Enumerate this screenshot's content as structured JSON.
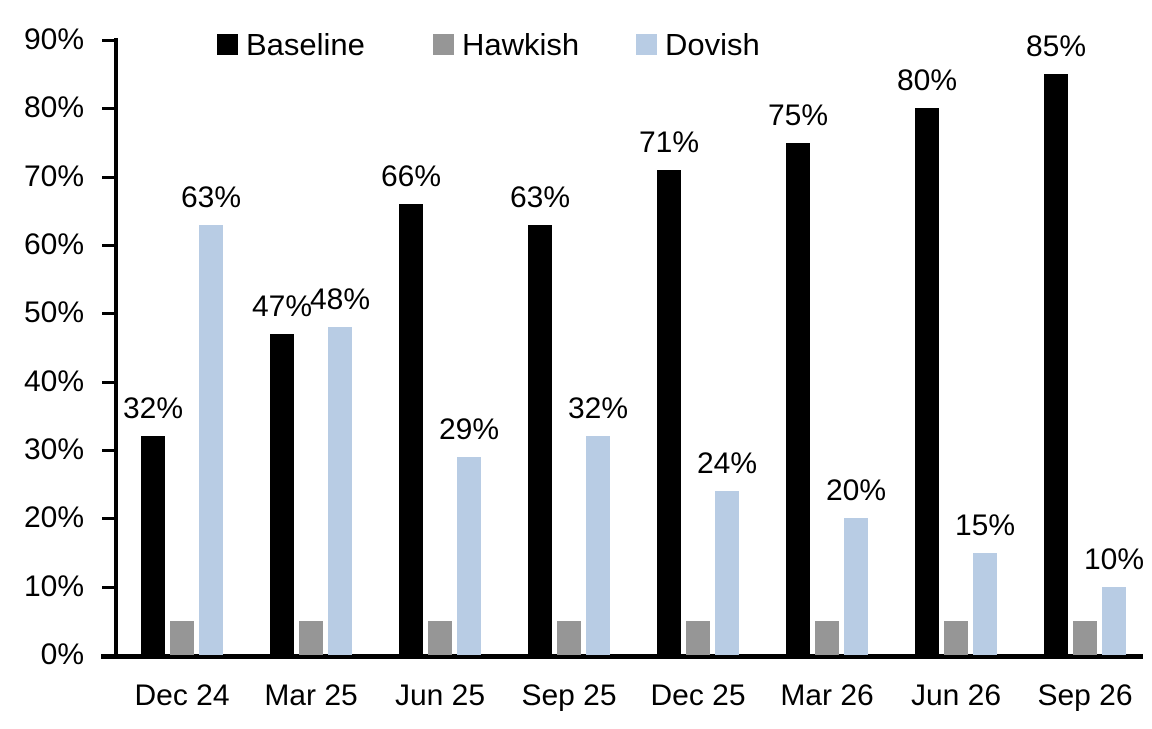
{
  "chart_data": {
    "type": "bar",
    "title": "",
    "xlabel": "",
    "ylabel": "",
    "categories": [
      "Dec 24",
      "Mar 25",
      "Jun 25",
      "Sep 25",
      "Dec 25",
      "Mar 26",
      "Jun 26",
      "Sep 26"
    ],
    "series": [
      {
        "name": "Baseline",
        "color": "#000000",
        "values": [
          32,
          47,
          66,
          63,
          71,
          75,
          80,
          85
        ],
        "data_labels": [
          "32%",
          "47%",
          "66%",
          "63%",
          "71%",
          "75%",
          "80%",
          "85%"
        ]
      },
      {
        "name": "Hawkish",
        "color": "#969696",
        "values": [
          5,
          5,
          5,
          5,
          5,
          5,
          5,
          5
        ],
        "data_labels": null
      },
      {
        "name": "Dovish",
        "color": "#b8cce4",
        "values": [
          63,
          48,
          29,
          32,
          24,
          20,
          15,
          10
        ],
        "data_labels": [
          "63%",
          "48%",
          "29%",
          "32%",
          "24%",
          "20%",
          "15%",
          "10%"
        ]
      }
    ],
    "y_axis": {
      "range": [
        0,
        90
      ],
      "tick_labels": [
        "0%",
        "10%",
        "20%",
        "30%",
        "40%",
        "50%",
        "60%",
        "70%",
        "80%",
        "90%"
      ],
      "tick_values": [
        0,
        10,
        20,
        30,
        40,
        50,
        60,
        70,
        80,
        90
      ]
    },
    "legend_position": "top",
    "grid": false,
    "axis_color": "#000000",
    "text_color": "#000000",
    "background_color": "#ffffff"
  }
}
